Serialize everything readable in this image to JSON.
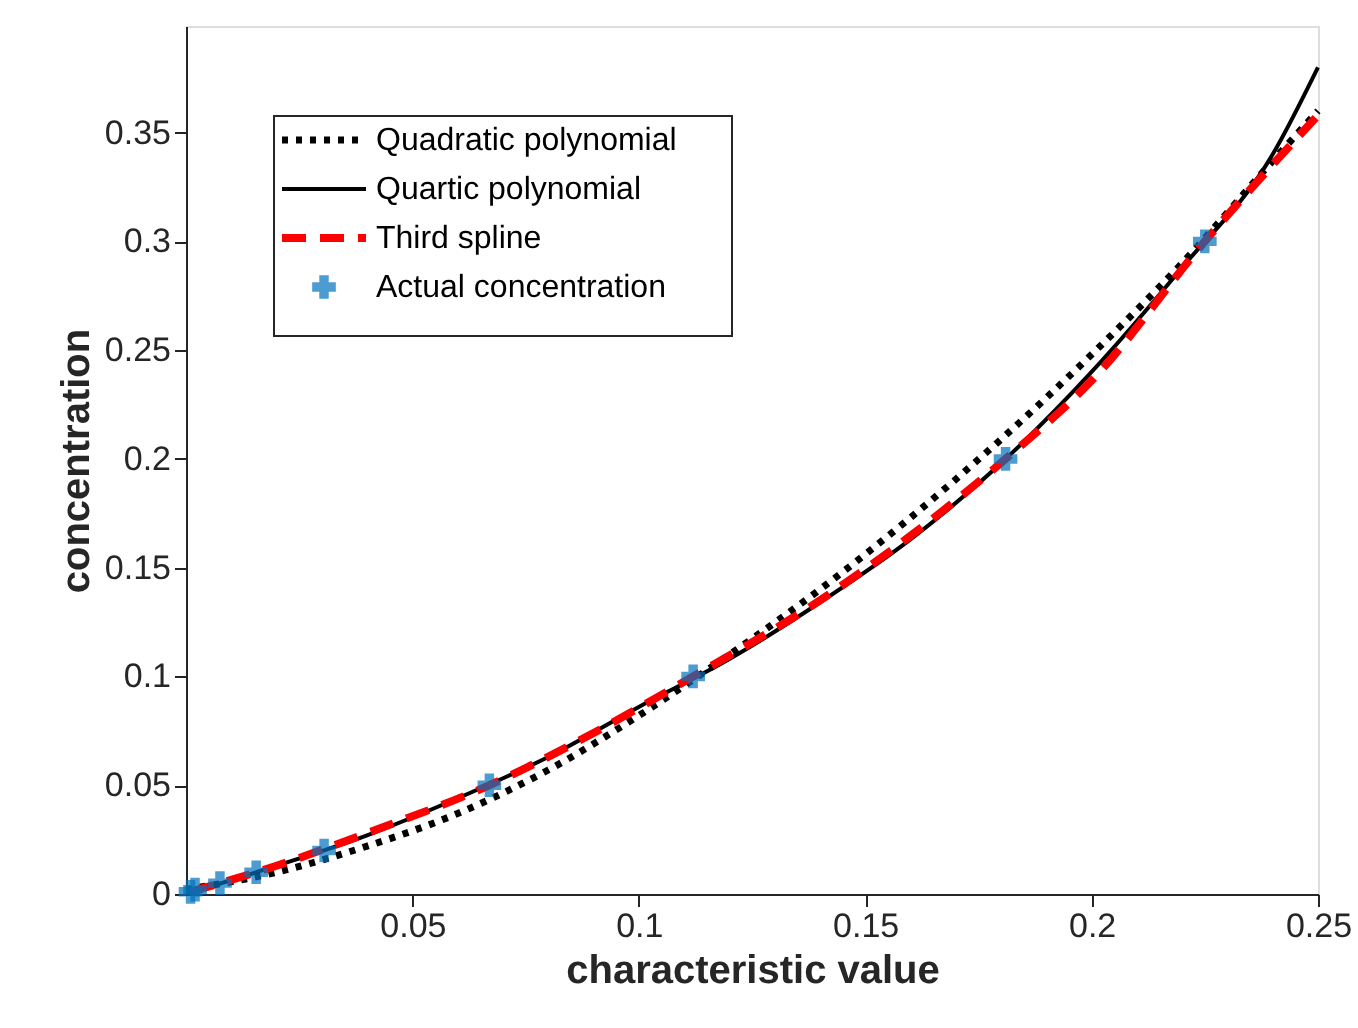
{
  "chart_data": {
    "type": "line",
    "xlabel": "characteristic value",
    "ylabel": "concentration",
    "xlim": [
      0,
      0.25
    ],
    "ylim": [
      0,
      0.399
    ],
    "xticks": [
      0.05,
      0.1,
      0.15,
      0.2,
      0.25
    ],
    "yticks": [
      0,
      0.05,
      0.1,
      0.15,
      0.2,
      0.25,
      0.3,
      0.35
    ],
    "grid": false,
    "legend": "top left",
    "series": [
      {
        "name": "Quadratic polynomial",
        "color": "#000000",
        "line_style": "dotted",
        "marker": "none",
        "x": [
          0,
          0.02,
          0.04,
          0.06,
          0.08,
          0.1,
          0.12,
          0.14,
          0.16,
          0.18,
          0.2,
          0.22,
          0.24,
          0.25
        ],
        "values": [
          0.002,
          0.01,
          0.022,
          0.037,
          0.057,
          0.082,
          0.11,
          0.14,
          0.173,
          0.209,
          0.248,
          0.29,
          0.337,
          0.36
        ]
      },
      {
        "name": "Quartic polynomial",
        "color": "#000000",
        "line_style": "solid",
        "marker": "none",
        "x": [
          0,
          0.02,
          0.04,
          0.06,
          0.08,
          0.1,
          0.12,
          0.14,
          0.16,
          0.18,
          0.2,
          0.22,
          0.24,
          0.25
        ],
        "values": [
          0,
          0.013,
          0.027,
          0.044,
          0.063,
          0.086,
          0.108,
          0.134,
          0.163,
          0.198,
          0.24,
          0.288,
          0.34,
          0.38
        ]
      },
      {
        "name": "Third spline",
        "color": "#ff0000",
        "line_style": "dashed",
        "marker": "none",
        "x": [
          0.001,
          0.02,
          0.04,
          0.067,
          0.09,
          0.112,
          0.14,
          0.181,
          0.2,
          0.225,
          0.25
        ],
        "values": [
          0.001,
          0.013,
          0.028,
          0.05,
          0.074,
          0.1,
          0.135,
          0.2,
          0.236,
          0.3,
          0.358
        ]
      },
      {
        "name": "Actual concentration",
        "type": "scatter",
        "color": "#0072bd",
        "marker": "cross",
        "x": [
          0.001,
          0.002,
          0.0075,
          0.0155,
          0.0305,
          0.067,
          0.112,
          0.181,
          0.225
        ],
        "values": [
          0.001,
          0.002,
          0.005,
          0.01,
          0.02,
          0.05,
          0.1,
          0.2,
          0.3
        ]
      }
    ]
  }
}
